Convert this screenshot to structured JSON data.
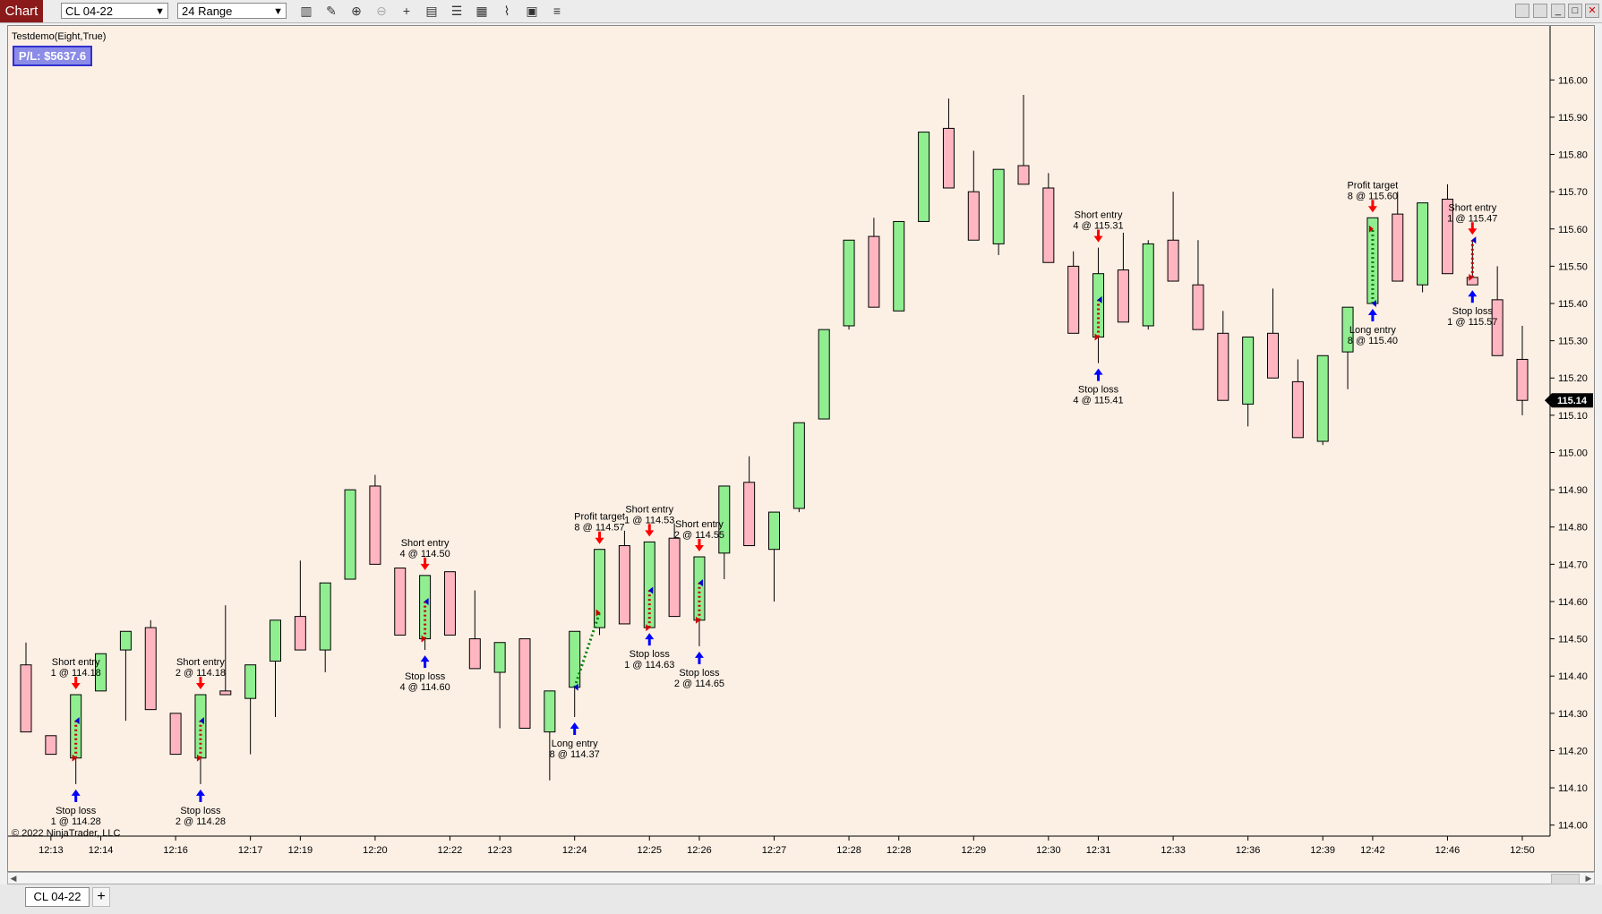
{
  "toolbar": {
    "chart_tab": "Chart",
    "instrument": "CL 04-22",
    "bar_type": "24 Range",
    "tools": [
      "bars-icon",
      "pencil-icon",
      "zoom-in-icon",
      "zoom-out-icon",
      "crosshair-icon",
      "data-box-icon",
      "properties-icon",
      "indicators-icon",
      "strategy-icon",
      "templates-icon",
      "list-icon"
    ]
  },
  "strategy": {
    "label": "Testdemo(Eight,True)",
    "pl": "P/L: $5637.6"
  },
  "copyright": "© 2022 NinjaTrader, LLC",
  "bottom": {
    "instrument_tab": "CL 04-22",
    "add_tab": "+"
  },
  "colors": {
    "background": "#fcf0e5",
    "up": "#90ee90",
    "down": "#ffb6c1",
    "entry_arrow": "#0000ff",
    "exit_arrow": "#ff0000",
    "pl_box": "#8b8be8"
  },
  "chart_data": {
    "type": "candlestick",
    "ylim": [
      113.98,
      116.08
    ],
    "y_ticks": [
      114.0,
      114.1,
      114.2,
      114.3,
      114.4,
      114.5,
      114.6,
      114.7,
      114.8,
      114.9,
      115.0,
      115.1,
      115.2,
      115.3,
      115.4,
      115.5,
      115.6,
      115.7,
      115.8,
      115.9,
      116.0
    ],
    "last_price": "115.14",
    "x_labels": [
      {
        "bar": 1,
        "label": "12:13"
      },
      {
        "bar": 3,
        "label": "12:14"
      },
      {
        "bar": 6,
        "label": "12:16"
      },
      {
        "bar": 9,
        "label": "12:17"
      },
      {
        "bar": 11,
        "label": "12:19"
      },
      {
        "bar": 14,
        "label": "12:20"
      },
      {
        "bar": 17,
        "label": "12:22"
      },
      {
        "bar": 19,
        "label": "12:23"
      },
      {
        "bar": 22,
        "label": "12:24"
      },
      {
        "bar": 25,
        "label": "12:25"
      },
      {
        "bar": 27,
        "label": "12:26"
      },
      {
        "bar": 30,
        "label": "12:27"
      },
      {
        "bar": 33,
        "label": "12:28"
      },
      {
        "bar": 35,
        "label": "12:28"
      },
      {
        "bar": 38,
        "label": "12:29"
      },
      {
        "bar": 41,
        "label": "12:30"
      },
      {
        "bar": 43,
        "label": "12:31"
      },
      {
        "bar": 46,
        "label": "12:33"
      },
      {
        "bar": 49,
        "label": "12:36"
      },
      {
        "bar": 52,
        "label": "12:39"
      },
      {
        "bar": 54,
        "label": "12:42"
      },
      {
        "bar": 57,
        "label": "12:46"
      },
      {
        "bar": 60,
        "label": "12:50"
      }
    ],
    "bars": [
      {
        "o": 114.43,
        "h": 114.49,
        "l": 114.25,
        "c": 114.25
      },
      {
        "o": 114.24,
        "h": 114.24,
        "l": 114.19,
        "c": 114.19
      },
      {
        "o": 114.18,
        "h": 114.35,
        "l": 114.11,
        "c": 114.35
      },
      {
        "o": 114.36,
        "h": 114.46,
        "l": 114.36,
        "c": 114.46
      },
      {
        "o": 114.47,
        "h": 114.52,
        "l": 114.28,
        "c": 114.52
      },
      {
        "o": 114.53,
        "h": 114.55,
        "l": 114.31,
        "c": 114.31
      },
      {
        "o": 114.3,
        "h": 114.3,
        "l": 114.19,
        "c": 114.19
      },
      {
        "o": 114.18,
        "h": 114.35,
        "l": 114.11,
        "c": 114.35
      },
      {
        "o": 114.36,
        "h": 114.59,
        "l": 114.35,
        "c": 114.35
      },
      {
        "o": 114.34,
        "h": 114.43,
        "l": 114.19,
        "c": 114.43
      },
      {
        "o": 114.44,
        "h": 114.55,
        "l": 114.29,
        "c": 114.55
      },
      {
        "o": 114.56,
        "h": 114.71,
        "l": 114.47,
        "c": 114.47
      },
      {
        "o": 114.47,
        "h": 114.65,
        "l": 114.41,
        "c": 114.65
      },
      {
        "o": 114.66,
        "h": 114.9,
        "l": 114.66,
        "c": 114.9
      },
      {
        "o": 114.91,
        "h": 114.94,
        "l": 114.7,
        "c": 114.7
      },
      {
        "o": 114.69,
        "h": 114.69,
        "l": 114.51,
        "c": 114.51
      },
      {
        "o": 114.5,
        "h": 114.67,
        "l": 114.47,
        "c": 114.67
      },
      {
        "o": 114.68,
        "h": 114.68,
        "l": 114.51,
        "c": 114.51
      },
      {
        "o": 114.5,
        "h": 114.63,
        "l": 114.42,
        "c": 114.42
      },
      {
        "o": 114.41,
        "h": 114.49,
        "l": 114.26,
        "c": 114.49
      },
      {
        "o": 114.5,
        "h": 114.5,
        "l": 114.26,
        "c": 114.26
      },
      {
        "o": 114.25,
        "h": 114.36,
        "l": 114.12,
        "c": 114.36
      },
      {
        "o": 114.37,
        "h": 114.52,
        "l": 114.29,
        "c": 114.52
      },
      {
        "o": 114.53,
        "h": 114.74,
        "l": 114.51,
        "c": 114.74
      },
      {
        "o": 114.75,
        "h": 114.79,
        "l": 114.54,
        "c": 114.54
      },
      {
        "o": 114.53,
        "h": 114.76,
        "l": 114.53,
        "c": 114.76
      },
      {
        "o": 114.77,
        "h": 114.81,
        "l": 114.56,
        "c": 114.56
      },
      {
        "o": 114.55,
        "h": 114.72,
        "l": 114.48,
        "c": 114.72
      },
      {
        "o": 114.73,
        "h": 114.91,
        "l": 114.66,
        "c": 114.91
      },
      {
        "o": 114.92,
        "h": 114.99,
        "l": 114.75,
        "c": 114.75
      },
      {
        "o": 114.74,
        "h": 114.84,
        "l": 114.6,
        "c": 114.84
      },
      {
        "o": 114.85,
        "h": 115.08,
        "l": 114.84,
        "c": 115.08
      },
      {
        "o": 115.09,
        "h": 115.33,
        "l": 115.09,
        "c": 115.33
      },
      {
        "o": 115.34,
        "h": 115.57,
        "l": 115.33,
        "c": 115.57
      },
      {
        "o": 115.58,
        "h": 115.63,
        "l": 115.39,
        "c": 115.39
      },
      {
        "o": 115.38,
        "h": 115.62,
        "l": 115.38,
        "c": 115.62
      },
      {
        "o": 115.62,
        "h": 115.86,
        "l": 115.62,
        "c": 115.86
      },
      {
        "o": 115.87,
        "h": 115.95,
        "l": 115.71,
        "c": 115.71
      },
      {
        "o": 115.7,
        "h": 115.81,
        "l": 115.57,
        "c": 115.57
      },
      {
        "o": 115.56,
        "h": 115.76,
        "l": 115.53,
        "c": 115.76
      },
      {
        "o": 115.77,
        "h": 115.96,
        "l": 115.72,
        "c": 115.72
      },
      {
        "o": 115.71,
        "h": 115.75,
        "l": 115.51,
        "c": 115.51
      },
      {
        "o": 115.5,
        "h": 115.54,
        "l": 115.32,
        "c": 115.32
      },
      {
        "o": 115.31,
        "h": 115.55,
        "l": 115.24,
        "c": 115.48
      },
      {
        "o": 115.49,
        "h": 115.59,
        "l": 115.35,
        "c": 115.35
      },
      {
        "o": 115.34,
        "h": 115.57,
        "l": 115.33,
        "c": 115.56
      },
      {
        "o": 115.57,
        "h": 115.7,
        "l": 115.46,
        "c": 115.46
      },
      {
        "o": 115.45,
        "h": 115.57,
        "l": 115.33,
        "c": 115.33
      },
      {
        "o": 115.32,
        "h": 115.38,
        "l": 115.14,
        "c": 115.14
      },
      {
        "o": 115.13,
        "h": 115.31,
        "l": 115.07,
        "c": 115.31
      },
      {
        "o": 115.32,
        "h": 115.44,
        "l": 115.2,
        "c": 115.2
      },
      {
        "o": 115.19,
        "h": 115.25,
        "l": 115.04,
        "c": 115.04
      },
      {
        "o": 115.03,
        "h": 115.26,
        "l": 115.02,
        "c": 115.26
      },
      {
        "o": 115.27,
        "h": 115.39,
        "l": 115.17,
        "c": 115.39
      },
      {
        "o": 115.4,
        "h": 115.63,
        "l": 115.4,
        "c": 115.63
      },
      {
        "o": 115.64,
        "h": 115.7,
        "l": 115.46,
        "c": 115.46
      },
      {
        "o": 115.45,
        "h": 115.67,
        "l": 115.43,
        "c": 115.67
      },
      {
        "o": 115.68,
        "h": 115.72,
        "l": 115.48,
        "c": 115.48
      },
      {
        "o": 115.47,
        "h": 115.57,
        "l": 115.45,
        "c": 115.45
      },
      {
        "o": 115.41,
        "h": 115.5,
        "l": 115.26,
        "c": 115.26
      },
      {
        "o": 115.25,
        "h": 115.34,
        "l": 115.1,
        "c": 115.14
      }
    ],
    "annotations": [
      {
        "bar": 2,
        "type": "short-entry",
        "lines": [
          "Short entry",
          "1 @ 114.18"
        ],
        "price": 114.18
      },
      {
        "bar": 2,
        "type": "stop-loss",
        "lines": [
          "Stop loss",
          "1 @ 114.28"
        ],
        "price": 114.28
      },
      {
        "bar": 7,
        "type": "short-entry",
        "lines": [
          "Short entry",
          "2 @ 114.18"
        ],
        "price": 114.18
      },
      {
        "bar": 7,
        "type": "stop-loss",
        "lines": [
          "Stop loss",
          "2 @ 114.28"
        ],
        "price": 114.28
      },
      {
        "bar": 16,
        "type": "short-entry",
        "lines": [
          "Short entry",
          "4 @ 114.50"
        ],
        "price": 114.5
      },
      {
        "bar": 16,
        "type": "stop-loss",
        "lines": [
          "Stop loss",
          "4 @ 114.60"
        ],
        "price": 114.6
      },
      {
        "bar": 22,
        "type": "long-entry",
        "lines": [
          "Long entry",
          "8 @ 114.37"
        ],
        "price": 114.37
      },
      {
        "bar": 23,
        "type": "profit-target",
        "lines": [
          "Profit target",
          "8 @ 114.57"
        ],
        "price": 114.57
      },
      {
        "bar": 25,
        "type": "short-entry",
        "lines": [
          "Short entry",
          "1 @ 114.53"
        ],
        "price": 114.53
      },
      {
        "bar": 25,
        "type": "stop-loss",
        "lines": [
          "Stop loss",
          "1 @ 114.63"
        ],
        "price": 114.63
      },
      {
        "bar": 27,
        "type": "short-entry",
        "lines": [
          "Short entry",
          "2 @ 114.55"
        ],
        "price": 114.55
      },
      {
        "bar": 27,
        "type": "stop-loss",
        "lines": [
          "Stop loss",
          "2 @ 114.65"
        ],
        "price": 114.65
      },
      {
        "bar": 43,
        "type": "short-entry",
        "lines": [
          "Short entry",
          "4 @ 115.31"
        ],
        "price": 115.31
      },
      {
        "bar": 43,
        "type": "stop-loss",
        "lines": [
          "Stop loss",
          "4 @ 115.41"
        ],
        "price": 115.41
      },
      {
        "bar": 54,
        "type": "long-entry",
        "lines": [
          "Long entry",
          "8 @ 115.40"
        ],
        "price": 115.4
      },
      {
        "bar": 54,
        "type": "profit-target",
        "lines": [
          "Profit target",
          "8 @ 115.60"
        ],
        "price": 115.6
      },
      {
        "bar": 58,
        "type": "short-entry",
        "lines": [
          "Short entry",
          "1 @ 115.47"
        ],
        "price": 115.47
      },
      {
        "bar": 58,
        "type": "stop-loss",
        "lines": [
          "Stop loss",
          "1 @ 115.57"
        ],
        "price": 115.57
      }
    ],
    "trade_lines": [
      {
        "from_bar": 2,
        "from": 114.18,
        "to_bar": 2,
        "to": 114.28,
        "color": "#cc0000"
      },
      {
        "from_bar": 7,
        "from": 114.18,
        "to_bar": 7,
        "to": 114.28,
        "color": "#cc0000"
      },
      {
        "from_bar": 16,
        "from": 114.5,
        "to_bar": 16,
        "to": 114.6,
        "color": "#cc0000"
      },
      {
        "from_bar": 22,
        "from": 114.37,
        "to_bar": 23,
        "to": 114.57,
        "color": "#008000"
      },
      {
        "from_bar": 25,
        "from": 114.53,
        "to_bar": 25,
        "to": 114.63,
        "color": "#cc0000"
      },
      {
        "from_bar": 27,
        "from": 114.55,
        "to_bar": 27,
        "to": 114.65,
        "color": "#cc0000"
      },
      {
        "from_bar": 43,
        "from": 115.31,
        "to_bar": 43,
        "to": 115.41,
        "color": "#cc0000"
      },
      {
        "from_bar": 54,
        "from": 115.4,
        "to_bar": 54,
        "to": 115.6,
        "color": "#008000"
      },
      {
        "from_bar": 58,
        "from": 115.47,
        "to_bar": 58,
        "to": 115.57,
        "color": "#cc0000"
      }
    ]
  }
}
